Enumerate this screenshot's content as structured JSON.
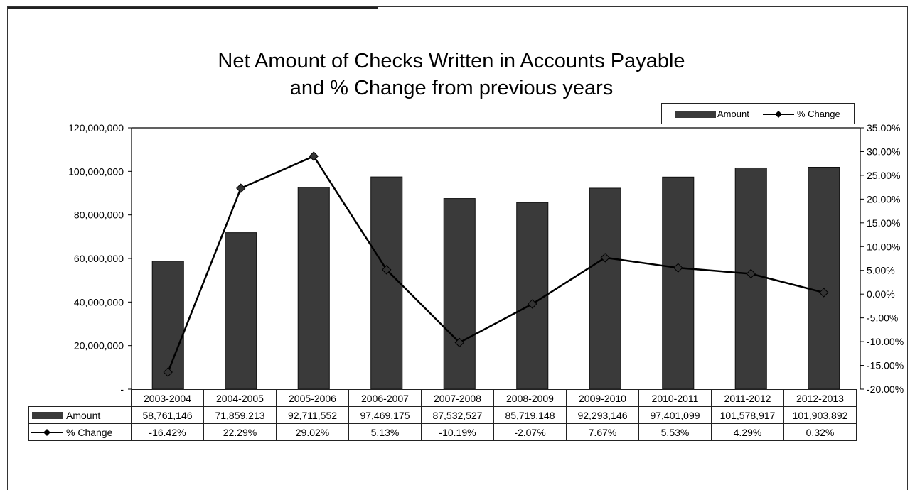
{
  "chart_data": {
    "type": "bar",
    "title_line1": "Net Amount of Checks Written in Accounts Payable",
    "title_line2": "and % Change from previous years",
    "categories": [
      "2003-2004",
      "2004-2005",
      "2005-2006",
      "2006-2007",
      "2007-2008",
      "2008-2009",
      "2009-2010",
      "2010-2011",
      "2011-2012",
      "2012-2013"
    ],
    "series": [
      {
        "name": "Amount",
        "type": "bar",
        "axis": "left",
        "color": "#3a3a3a",
        "values": [
          58761146,
          71859213,
          92711552,
          97469175,
          87532527,
          85719148,
          92293146,
          97401099,
          101578917,
          101903892
        ],
        "labels": [
          "58,761,146",
          "71,859,213",
          "92,711,552",
          "97,469,175",
          "87,532,527",
          "85,719,148",
          "92,293,146",
          "97,401,099",
          "101,578,917",
          "101,903,892"
        ]
      },
      {
        "name": "% Change",
        "type": "line",
        "axis": "right",
        "color": "#000000",
        "values": [
          -16.42,
          22.29,
          29.02,
          5.13,
          -10.19,
          -2.07,
          7.67,
          5.53,
          4.29,
          0.32
        ],
        "labels": [
          "-16.42%",
          "22.29%",
          "29.02%",
          "5.13%",
          "-10.19%",
          "-2.07%",
          "7.67%",
          "5.53%",
          "4.29%",
          "0.32%"
        ]
      }
    ],
    "ylim_left": [
      0,
      120000000
    ],
    "ylim_right": [
      -20,
      35
    ],
    "left_ticks": [
      "-",
      "20,000,000",
      "40,000,000",
      "60,000,000",
      "80,000,000",
      "100,000,000",
      "120,000,000"
    ],
    "right_ticks": [
      "-20.00%",
      "-15.00%",
      "-10.00%",
      "-5.00%",
      "0.00%",
      "5.00%",
      "10.00%",
      "15.00%",
      "20.00%",
      "25.00%",
      "30.00%",
      "35.00%"
    ],
    "legend_position": "top-right",
    "grid": false
  },
  "legend": {
    "amount_label": "Amount",
    "change_label": "% Change"
  },
  "table": {
    "row1_label": "Amount",
    "row2_label": "% Change"
  }
}
